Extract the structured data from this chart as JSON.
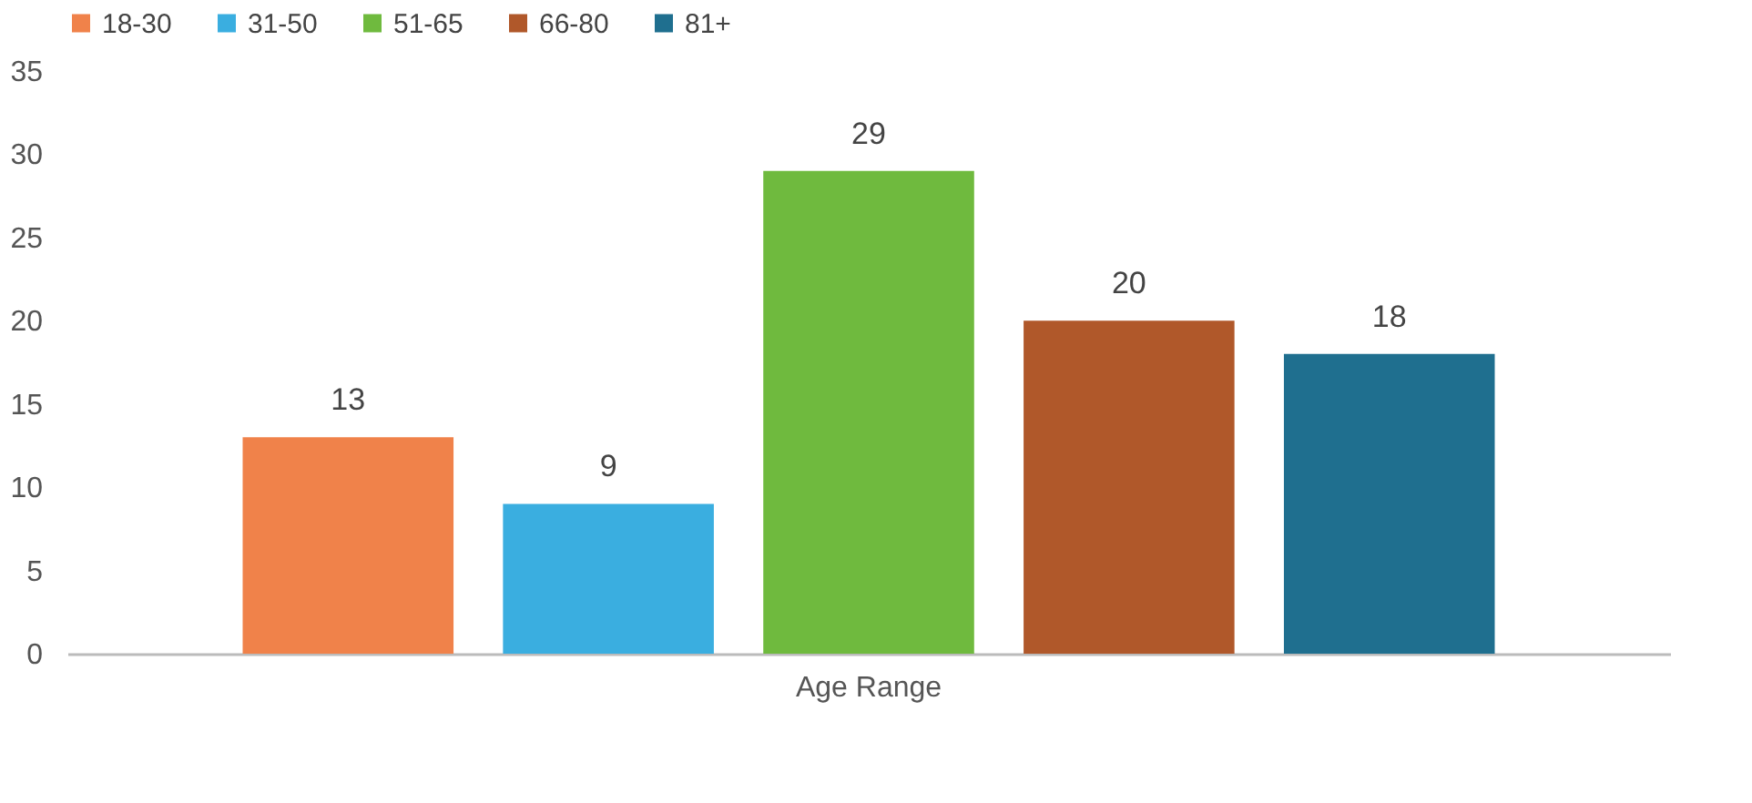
{
  "chart_data": {
    "type": "bar",
    "categories": [
      "Age Range"
    ],
    "series": [
      {
        "name": "18-30",
        "color": "#f0824a",
        "values": [
          13
        ]
      },
      {
        "name": "31-50",
        "color": "#3aaee0",
        "values": [
          9
        ]
      },
      {
        "name": "51-65",
        "color": "#6fba3e",
        "values": [
          29
        ]
      },
      {
        "name": "66-80",
        "color": "#b0582a",
        "values": [
          20
        ]
      },
      {
        "name": "81+",
        "color": "#1f6f8f",
        "values": [
          18
        ]
      }
    ],
    "ylim": [
      0,
      35
    ],
    "yticks": [
      0,
      5,
      10,
      15,
      20,
      25,
      30,
      35
    ],
    "grid": false,
    "legend": "top",
    "data_labels": true
  }
}
